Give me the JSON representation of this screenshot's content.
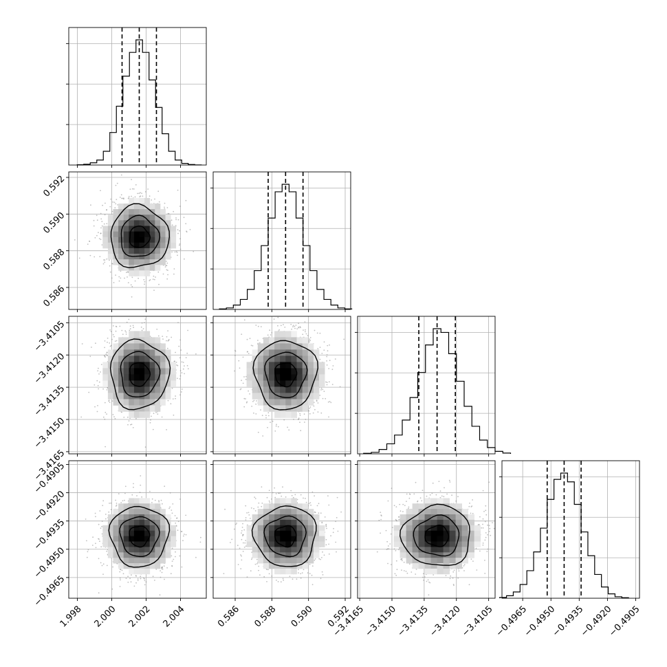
{
  "chart_data": {
    "type": "corner",
    "params": [
      {
        "mean": 2.0016,
        "std": 0.00095,
        "range": [
          1.9975,
          2.0055
        ],
        "ticks": [
          1.998,
          2.0,
          2.002,
          2.004
        ],
        "tick_labels": [
          "1.998",
          "2.000",
          "2.002",
          "2.004"
        ],
        "quantiles": [
          2.0006,
          2.0016,
          2.0026
        ]
      },
      {
        "mean": 0.58875,
        "std": 0.00095,
        "range": [
          0.5848,
          0.5923
        ],
        "ticks": [
          0.586,
          0.588,
          0.59,
          0.592
        ],
        "tick_labels": [
          "0.586",
          "0.588",
          "0.590",
          "0.592"
        ],
        "quantiles": [
          0.5878,
          0.58875,
          0.5897
        ]
      },
      {
        "mean": -3.4129,
        "std": 0.0009,
        "range": [
          -3.4166,
          -3.4102
        ],
        "ticks": [
          -3.4165,
          -3.415,
          -3.4135,
          -3.412,
          -3.4105
        ],
        "tick_labels": [
          "−3.4165",
          "−3.4150",
          "−3.4135",
          "−3.4120",
          "−3.4105"
        ],
        "quantiles": [
          -3.41375,
          -3.4129,
          -3.41205
        ]
      },
      {
        "mean": -0.4943,
        "std": 0.0009,
        "range": [
          -0.4976,
          -0.4903
        ],
        "ticks": [
          -0.4965,
          -0.495,
          -0.4935,
          -0.492,
          -0.4905
        ],
        "tick_labels": [
          "−0.4965",
          "−0.4950",
          "−0.4935",
          "−0.4920",
          "−0.4905"
        ],
        "quantiles": [
          -0.4952,
          -0.4943,
          -0.4934
        ]
      }
    ],
    "histograms": [
      [
        0.002,
        0.006,
        0.018,
        0.04,
        0.11,
        0.26,
        0.47,
        0.71,
        0.9,
        1.0,
        0.9,
        0.68,
        0.46,
        0.25,
        0.11,
        0.04,
        0.013,
        0.004,
        0.001
      ],
      [
        0.004,
        0.012,
        0.035,
        0.08,
        0.16,
        0.31,
        0.51,
        0.73,
        0.94,
        1.0,
        0.94,
        0.73,
        0.51,
        0.31,
        0.16,
        0.08,
        0.035,
        0.012,
        0.004
      ],
      [
        0.004,
        0.012,
        0.035,
        0.08,
        0.15,
        0.27,
        0.45,
        0.65,
        0.87,
        1.0,
        0.97,
        0.8,
        0.58,
        0.38,
        0.22,
        0.11,
        0.05,
        0.02,
        0.006
      ],
      [
        0.006,
        0.02,
        0.05,
        0.11,
        0.22,
        0.37,
        0.56,
        0.79,
        0.95,
        1.0,
        0.93,
        0.75,
        0.53,
        0.34,
        0.19,
        0.09,
        0.035,
        0.012,
        0.004
      ]
    ],
    "contour_levels_sigma": [
      0.6,
      1.15,
      1.75
    ],
    "grid": true,
    "colors": {
      "axis": "#000000",
      "grid": "#b0b0b0",
      "points": "#8a8a8a",
      "density_dark": "#000000",
      "density_light": "#ffffff"
    }
  }
}
